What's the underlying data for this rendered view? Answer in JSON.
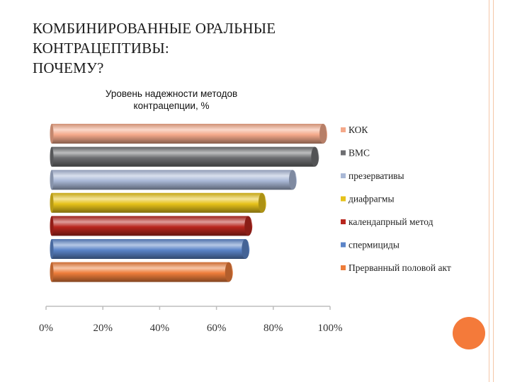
{
  "slide": {
    "title_lines": [
      "КОМБИНИРОВАННЫЕ ОРАЛЬНЫЕ",
      "КОНТРАЦЕПТИВЫ:",
      "ПОЧЕМУ?"
    ],
    "accent_color": "#f47a3a",
    "line_color": "#f5c6a8"
  },
  "chart_data": {
    "type": "bar",
    "orientation": "horizontal",
    "style": "3d-cylinder",
    "title_lines": [
      "Уровень надежности методов",
      "контрацепции, %"
    ],
    "xlim": [
      0,
      100
    ],
    "xticks": [
      "0%",
      "20%",
      "40%",
      "60%",
      "80%",
      "100%"
    ],
    "grid": false,
    "legend_position": "right",
    "series": [
      {
        "name": "КОК",
        "value": 99,
        "color": "#f4a98a"
      },
      {
        "name": "ВМС",
        "value": 96,
        "color": "#6d6e71"
      },
      {
        "name": "презервативы",
        "value": 88,
        "color": "#a9b8d6"
      },
      {
        "name": "диафрагмы",
        "value": 77,
        "color": "#e6c21a"
      },
      {
        "name": "календапрный метод",
        "value": 72,
        "color": "#b8261e"
      },
      {
        "name": "спермициды",
        "value": 71,
        "color": "#5b84c8"
      },
      {
        "name": "Прерванный половой акт",
        "value": 65,
        "color": "#ee7d3a"
      }
    ]
  }
}
